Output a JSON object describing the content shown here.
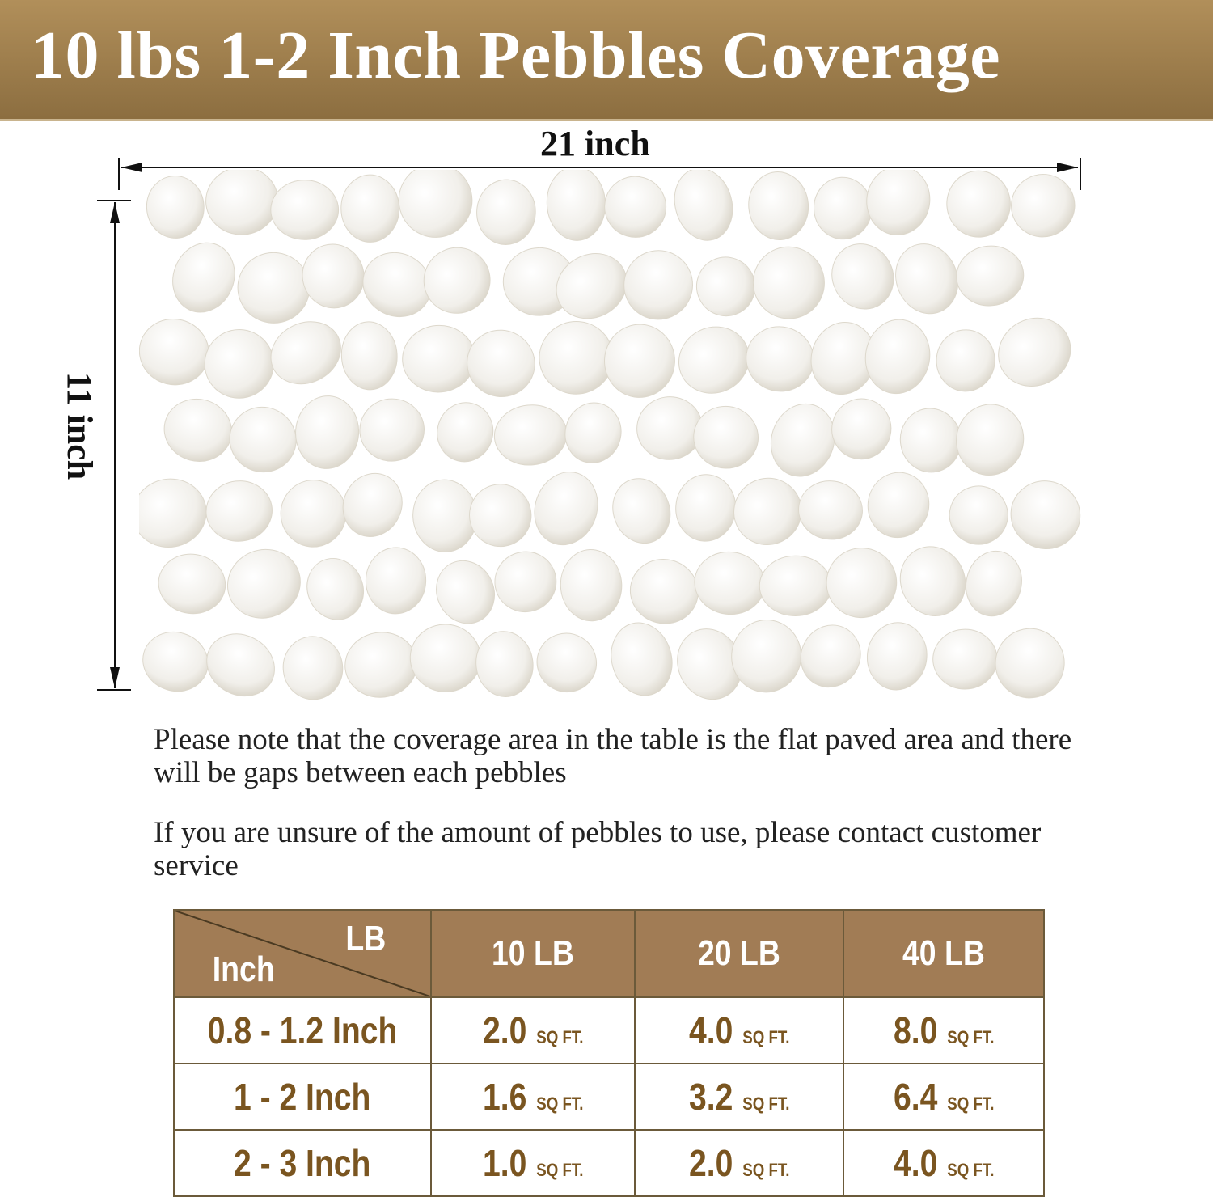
{
  "title": "10 lbs 1-2 Inch Pebbles Coverage",
  "dimensions": {
    "width": "21 inch",
    "height": "11 inch"
  },
  "notes": [
    "Please note that the coverage area in the table is the flat paved area and there will be gaps between each pebbles",
    "If you are unsure of the amount of pebbles to use, please contact customer service"
  ],
  "colors": {
    "banner": "#9e7f4d",
    "table_header": "#a17c55",
    "table_text": "#7a5520"
  },
  "table": {
    "corner_top": "LB",
    "corner_bottom": "Inch",
    "columns": [
      "10 LB",
      "20 LB",
      "40 LB"
    ],
    "unit": "SQ FT.",
    "rows": [
      {
        "size": "0.8 - 1.2 Inch",
        "values": [
          "2.0",
          "4.0",
          "8.0"
        ]
      },
      {
        "size": "1 - 2 Inch",
        "values": [
          "1.6",
          "3.2",
          "6.4"
        ]
      },
      {
        "size": "2 - 3 Inch",
        "values": [
          "1.0",
          "2.0",
          "4.0"
        ]
      }
    ]
  }
}
